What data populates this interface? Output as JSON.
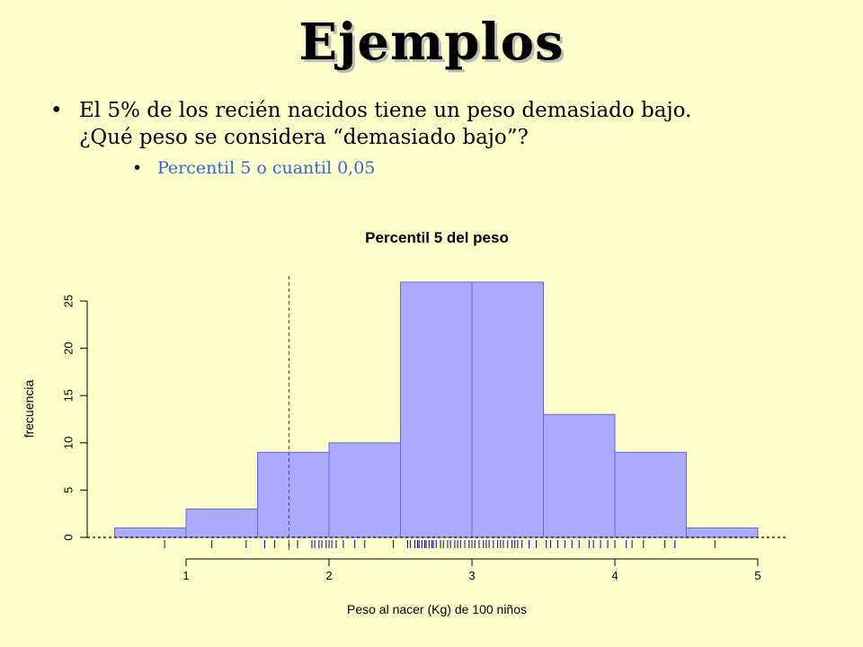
{
  "slide": {
    "title": "Ejemplos",
    "bullet1_line1": "El 5% de los recién nacidos tiene un peso demasiado bajo.",
    "bullet1_line2": "¿Qué peso se considera “demasiado bajo”?",
    "bullet2": "Percentil 5 o cuantil 0,05",
    "bullet_glyph": "•"
  },
  "chart_data": {
    "type": "bar",
    "title": "Percentil 5 del peso",
    "xlabel": "Peso al nacer (Kg) de 100 niños",
    "ylabel": "frecuencia",
    "bins": [
      {
        "x0": 0.5,
        "x1": 1.0,
        "count": 1
      },
      {
        "x0": 1.0,
        "x1": 1.5,
        "count": 3
      },
      {
        "x0": 1.5,
        "x1": 2.0,
        "count": 9
      },
      {
        "x0": 2.0,
        "x1": 2.5,
        "count": 10
      },
      {
        "x0": 2.5,
        "x1": 3.0,
        "count": 27
      },
      {
        "x0": 3.0,
        "x1": 3.5,
        "count": 27
      },
      {
        "x0": 3.5,
        "x1": 4.0,
        "count": 13
      },
      {
        "x0": 4.0,
        "x1": 4.5,
        "count": 9
      },
      {
        "x0": 4.5,
        "x1": 5.0,
        "count": 1
      }
    ],
    "xlim": [
      0.5,
      5.0
    ],
    "ylim": [
      0,
      28
    ],
    "x_ticks": [
      1,
      2,
      3,
      4,
      5
    ],
    "y_ticks": [
      0,
      5,
      10,
      15,
      20,
      25
    ],
    "percentile_5": 1.72,
    "rug": [
      0.85,
      1.18,
      1.42,
      1.55,
      1.62,
      1.72,
      1.78,
      1.88,
      1.9,
      1.93,
      1.95,
      1.98,
      2.0,
      2.02,
      2.05,
      2.1,
      2.18,
      2.25,
      2.45,
      2.55,
      2.57,
      2.6,
      2.62,
      2.63,
      2.65,
      2.67,
      2.68,
      2.7,
      2.72,
      2.73,
      2.75,
      2.78,
      2.8,
      2.83,
      2.85,
      2.88,
      2.9,
      2.92,
      2.95,
      2.98,
      3.0,
      3.02,
      3.05,
      3.08,
      3.1,
      3.12,
      3.15,
      3.18,
      3.2,
      3.22,
      3.25,
      3.28,
      3.3,
      3.32,
      3.35,
      3.4,
      3.45,
      3.52,
      3.55,
      3.6,
      3.65,
      3.7,
      3.75,
      3.82,
      3.85,
      3.9,
      3.95,
      4.0,
      4.08,
      4.12,
      4.2,
      4.35,
      4.42,
      4.7
    ],
    "colors": {
      "bar_fill": "#AAAAFF",
      "bar_stroke": "#6666DD",
      "rug": "#0000AA",
      "percentile_line": "#CC2222",
      "axis": "#000000"
    }
  }
}
